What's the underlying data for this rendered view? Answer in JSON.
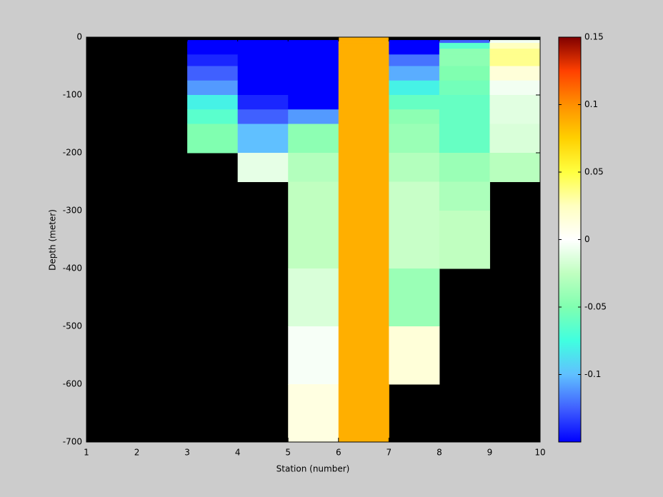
{
  "chart_data": {
    "type": "heatmap",
    "xlabel": "Station (number)",
    "ylabel": "Depth (meter)",
    "x_edges": [
      1,
      2,
      3,
      4,
      5,
      6,
      7,
      8,
      9,
      10
    ],
    "y_edges": [
      0,
      -5,
      -10,
      -20,
      -30,
      -50,
      -75,
      -100,
      -125,
      -150,
      -200,
      -250,
      -300,
      -400,
      -500,
      -600,
      -700
    ],
    "z": [
      [
        null,
        null,
        null,
        null,
        null,
        0.088,
        null,
        null,
        null
      ],
      [
        null,
        null,
        -0.15,
        -0.15,
        -0.15,
        0.088,
        -0.15,
        -0.125,
        -0.005
      ],
      [
        null,
        null,
        -0.15,
        -0.15,
        -0.15,
        0.088,
        -0.15,
        -0.065,
        0.025
      ],
      [
        null,
        null,
        -0.15,
        -0.15,
        -0.15,
        0.088,
        -0.15,
        -0.045,
        0.035
      ],
      [
        null,
        null,
        -0.14,
        -0.15,
        -0.15,
        0.088,
        -0.12,
        -0.045,
        0.035
      ],
      [
        null,
        null,
        -0.125,
        -0.15,
        -0.15,
        0.088,
        -0.105,
        -0.05,
        0.015
      ],
      [
        null,
        null,
        -0.11,
        -0.15,
        -0.15,
        0.088,
        -0.08,
        -0.055,
        -0.005
      ],
      [
        null,
        null,
        -0.08,
        -0.14,
        -0.15,
        0.088,
        -0.06,
        -0.06,
        -0.012
      ],
      [
        null,
        null,
        -0.065,
        -0.125,
        -0.11,
        0.088,
        -0.045,
        -0.06,
        -0.012
      ],
      [
        null,
        null,
        -0.05,
        -0.1,
        -0.045,
        0.088,
        -0.04,
        -0.06,
        -0.015
      ],
      [
        null,
        null,
        null,
        -0.01,
        -0.03,
        0.088,
        -0.03,
        -0.04,
        -0.028
      ],
      [
        null,
        null,
        null,
        null,
        -0.025,
        0.088,
        -0.022,
        -0.033,
        null
      ],
      [
        null,
        null,
        null,
        null,
        -0.025,
        0.088,
        -0.022,
        -0.025,
        null
      ],
      [
        null,
        null,
        null,
        null,
        -0.015,
        0.088,
        -0.04,
        null,
        null
      ],
      [
        null,
        null,
        null,
        null,
        -0.003,
        0.088,
        0.015,
        null,
        null
      ],
      [
        null,
        null,
        null,
        null,
        0.012,
        0.088,
        null,
        null,
        null
      ]
    ],
    "nan_color": "#000000",
    "colormap": [
      "#0000ff",
      "#4060ff",
      "#60c0ff",
      "#40ffe0",
      "#80ffb0",
      "#c0ffc0",
      "#ffffff",
      "#ffffc0",
      "#ffff40",
      "#ffd000",
      "#ff9000",
      "#ff4000",
      "#800000"
    ],
    "clim": [
      -0.15,
      0.15
    ],
    "cticks": [
      -0.1,
      -0.05,
      0,
      0.05,
      0.1,
      0.15
    ],
    "xlim": [
      1,
      10
    ],
    "xticks": [
      1,
      2,
      3,
      4,
      5,
      6,
      7,
      8,
      9,
      10
    ],
    "ylim": [
      -700,
      0
    ],
    "yticks": [
      -700,
      -600,
      -500,
      -400,
      -300,
      -200,
      -100,
      0
    ]
  }
}
